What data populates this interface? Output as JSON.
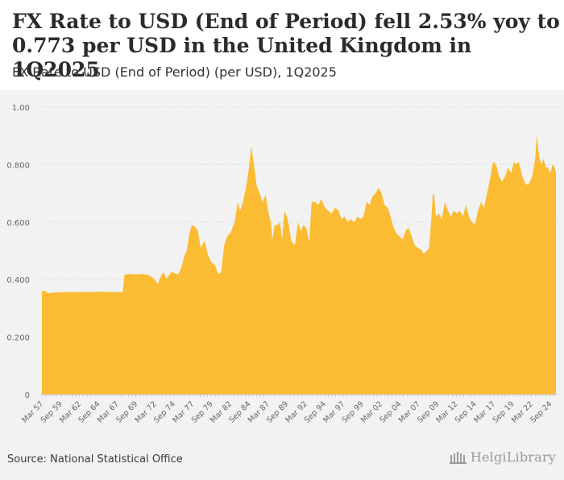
{
  "title": "FX Rate to USD (End of Period) fell 2.53% yoy to 0.773 per USD in the United Kingdom in 1Q2025",
  "subtitle": "FX Rate to USD (End of Period) (per USD), 1Q2025",
  "source": "Source: National Statistical Office",
  "logo_text": "HelgiLibrary",
  "colors": {
    "area": "#fbbc33",
    "grid": "#dcdcdc",
    "axis_text": "#666666",
    "background": "#f2f2f2"
  },
  "chart_data": {
    "type": "area",
    "title": "FX Rate to USD (End of Period) (per USD), 1Q2025",
    "xlabel": "",
    "ylabel": "",
    "ylim": [
      0,
      1.0
    ],
    "y_ticks": [
      0,
      0.2,
      0.4,
      0.6,
      0.8,
      1.0
    ],
    "y_tick_labels": [
      "0",
      "0.200",
      "0.400",
      "0.600",
      "0.800",
      "1.00"
    ],
    "x_ticks": [
      {
        "t": 1957.25,
        "label": "Mar 57"
      },
      {
        "t": 1959.75,
        "label": "Sep 59"
      },
      {
        "t": 1962.25,
        "label": "Mar 62"
      },
      {
        "t": 1964.75,
        "label": "Sep 64"
      },
      {
        "t": 1967.25,
        "label": "Mar 67"
      },
      {
        "t": 1969.75,
        "label": "Sep 69"
      },
      {
        "t": 1972.25,
        "label": "Mar 72"
      },
      {
        "t": 1974.75,
        "label": "Sep 74"
      },
      {
        "t": 1977.25,
        "label": "Mar 77"
      },
      {
        "t": 1979.75,
        "label": "Sep 79"
      },
      {
        "t": 1982.25,
        "label": "Mar 82"
      },
      {
        "t": 1984.75,
        "label": "Sep 84"
      },
      {
        "t": 1987.25,
        "label": "Mar 87"
      },
      {
        "t": 1989.75,
        "label": "Sep 89"
      },
      {
        "t": 1992.25,
        "label": "Mar 92"
      },
      {
        "t": 1994.75,
        "label": "Sep 94"
      },
      {
        "t": 1997.25,
        "label": "Mar 97"
      },
      {
        "t": 1999.75,
        "label": "Sep 99"
      },
      {
        "t": 2002.25,
        "label": "Mar 02"
      },
      {
        "t": 2004.75,
        "label": "Sep 04"
      },
      {
        "t": 2007.25,
        "label": "Mar 07"
      },
      {
        "t": 2009.75,
        "label": "Sep 09"
      },
      {
        "t": 2012.25,
        "label": "Mar 12"
      },
      {
        "t": 2014.75,
        "label": "Sep 14"
      },
      {
        "t": 2017.25,
        "label": "Mar 17"
      },
      {
        "t": 2019.75,
        "label": "Sep 19"
      },
      {
        "t": 2022.25,
        "label": "Mar 22"
      },
      {
        "t": 2024.75,
        "label": "Sep 24"
      }
    ],
    "x_range": [
      1957.0,
      2025.25
    ],
    "series": [
      {
        "name": "FX Rate to USD (End of Period)",
        "points": [
          [
            1957.0,
            0.36
          ],
          [
            1957.5,
            0.36
          ],
          [
            1957.75,
            0.352
          ],
          [
            1958.5,
            0.355
          ],
          [
            1960.0,
            0.357
          ],
          [
            1961.0,
            0.356
          ],
          [
            1962.0,
            0.357
          ],
          [
            1963.5,
            0.357
          ],
          [
            1965.0,
            0.358
          ],
          [
            1966.5,
            0.357
          ],
          [
            1967.5,
            0.357
          ],
          [
            1967.75,
            0.358
          ],
          [
            1967.95,
            0.416
          ],
          [
            1968.5,
            0.42
          ],
          [
            1969.5,
            0.418
          ],
          [
            1970.5,
            0.42
          ],
          [
            1971.2,
            0.415
          ],
          [
            1971.9,
            0.403
          ],
          [
            1972.4,
            0.385
          ],
          [
            1972.9,
            0.418
          ],
          [
            1973.2,
            0.425
          ],
          [
            1973.5,
            0.403
          ],
          [
            1973.9,
            0.415
          ],
          [
            1974.2,
            0.428
          ],
          [
            1974.6,
            0.422
          ],
          [
            1975.1,
            0.418
          ],
          [
            1975.5,
            0.44
          ],
          [
            1975.9,
            0.48
          ],
          [
            1976.2,
            0.5
          ],
          [
            1976.6,
            0.56
          ],
          [
            1976.9,
            0.59
          ],
          [
            1977.3,
            0.585
          ],
          [
            1977.7,
            0.57
          ],
          [
            1978.1,
            0.51
          ],
          [
            1978.6,
            0.535
          ],
          [
            1979.0,
            0.49
          ],
          [
            1979.5,
            0.46
          ],
          [
            1980.0,
            0.45
          ],
          [
            1980.4,
            0.42
          ],
          [
            1980.8,
            0.425
          ],
          [
            1981.2,
            0.52
          ],
          [
            1981.6,
            0.55
          ],
          [
            1982.1,
            0.565
          ],
          [
            1982.6,
            0.6
          ],
          [
            1983.0,
            0.67
          ],
          [
            1983.3,
            0.64
          ],
          [
            1983.7,
            0.67
          ],
          [
            1984.1,
            0.72
          ],
          [
            1984.5,
            0.79
          ],
          [
            1984.8,
            0.865
          ],
          [
            1985.1,
            0.81
          ],
          [
            1985.5,
            0.73
          ],
          [
            1985.9,
            0.7
          ],
          [
            1986.3,
            0.67
          ],
          [
            1986.7,
            0.695
          ],
          [
            1987.1,
            0.63
          ],
          [
            1987.4,
            0.6
          ],
          [
            1987.6,
            0.54
          ],
          [
            1987.9,
            0.59
          ],
          [
            1988.3,
            0.59
          ],
          [
            1988.6,
            0.6
          ],
          [
            1988.9,
            0.54
          ],
          [
            1989.2,
            0.64
          ],
          [
            1989.5,
            0.62
          ],
          [
            1989.8,
            0.59
          ],
          [
            1990.1,
            0.535
          ],
          [
            1990.6,
            0.52
          ],
          [
            1991.0,
            0.6
          ],
          [
            1991.4,
            0.57
          ],
          [
            1991.7,
            0.59
          ],
          [
            1992.1,
            0.58
          ],
          [
            1992.5,
            0.53
          ],
          [
            1992.8,
            0.67
          ],
          [
            1993.3,
            0.67
          ],
          [
            1993.7,
            0.66
          ],
          [
            1994.1,
            0.68
          ],
          [
            1994.6,
            0.65
          ],
          [
            1995.0,
            0.64
          ],
          [
            1995.5,
            0.63
          ],
          [
            1995.9,
            0.65
          ],
          [
            1996.4,
            0.64
          ],
          [
            1996.8,
            0.61
          ],
          [
            1997.2,
            0.62
          ],
          [
            1997.6,
            0.6
          ],
          [
            1998.0,
            0.61
          ],
          [
            1998.5,
            0.6
          ],
          [
            1998.9,
            0.62
          ],
          [
            1999.3,
            0.61
          ],
          [
            1999.7,
            0.62
          ],
          [
            2000.1,
            0.67
          ],
          [
            2000.5,
            0.66
          ],
          [
            2000.9,
            0.69
          ],
          [
            2001.3,
            0.7
          ],
          [
            2001.7,
            0.72
          ],
          [
            2002.1,
            0.7
          ],
          [
            2002.5,
            0.66
          ],
          [
            2002.9,
            0.65
          ],
          [
            2003.3,
            0.62
          ],
          [
            2003.7,
            0.58
          ],
          [
            2004.1,
            0.56
          ],
          [
            2004.5,
            0.55
          ],
          [
            2004.9,
            0.54
          ],
          [
            2005.3,
            0.57
          ],
          [
            2005.7,
            0.58
          ],
          [
            2006.1,
            0.55
          ],
          [
            2006.5,
            0.52
          ],
          [
            2006.9,
            0.51
          ],
          [
            2007.3,
            0.505
          ],
          [
            2007.7,
            0.49
          ],
          [
            2008.1,
            0.5
          ],
          [
            2008.4,
            0.51
          ],
          [
            2008.7,
            0.61
          ],
          [
            2008.9,
            0.7
          ],
          [
            2009.1,
            0.695
          ],
          [
            2009.3,
            0.62
          ],
          [
            2009.7,
            0.63
          ],
          [
            2010.1,
            0.61
          ],
          [
            2010.5,
            0.67
          ],
          [
            2010.9,
            0.64
          ],
          [
            2011.3,
            0.62
          ],
          [
            2011.7,
            0.64
          ],
          [
            2012.1,
            0.63
          ],
          [
            2012.5,
            0.64
          ],
          [
            2012.9,
            0.62
          ],
          [
            2013.3,
            0.66
          ],
          [
            2013.7,
            0.62
          ],
          [
            2014.1,
            0.6
          ],
          [
            2014.5,
            0.59
          ],
          [
            2014.9,
            0.64
          ],
          [
            2015.3,
            0.67
          ],
          [
            2015.7,
            0.65
          ],
          [
            2016.1,
            0.7
          ],
          [
            2016.5,
            0.75
          ],
          [
            2016.9,
            0.81
          ],
          [
            2017.3,
            0.8
          ],
          [
            2017.7,
            0.76
          ],
          [
            2018.1,
            0.74
          ],
          [
            2018.5,
            0.76
          ],
          [
            2018.9,
            0.79
          ],
          [
            2019.3,
            0.77
          ],
          [
            2019.7,
            0.81
          ],
          [
            2020.0,
            0.8
          ],
          [
            2020.3,
            0.81
          ],
          [
            2020.6,
            0.78
          ],
          [
            2020.9,
            0.75
          ],
          [
            2021.3,
            0.73
          ],
          [
            2021.7,
            0.735
          ],
          [
            2022.1,
            0.76
          ],
          [
            2022.5,
            0.82
          ],
          [
            2022.7,
            0.905
          ],
          [
            2023.0,
            0.83
          ],
          [
            2023.3,
            0.8
          ],
          [
            2023.6,
            0.82
          ],
          [
            2023.9,
            0.79
          ],
          [
            2024.2,
            0.79
          ],
          [
            2024.5,
            0.77
          ],
          [
            2024.8,
            0.8
          ],
          [
            2025.0,
            0.795
          ],
          [
            2025.25,
            0.773
          ]
        ]
      }
    ]
  }
}
